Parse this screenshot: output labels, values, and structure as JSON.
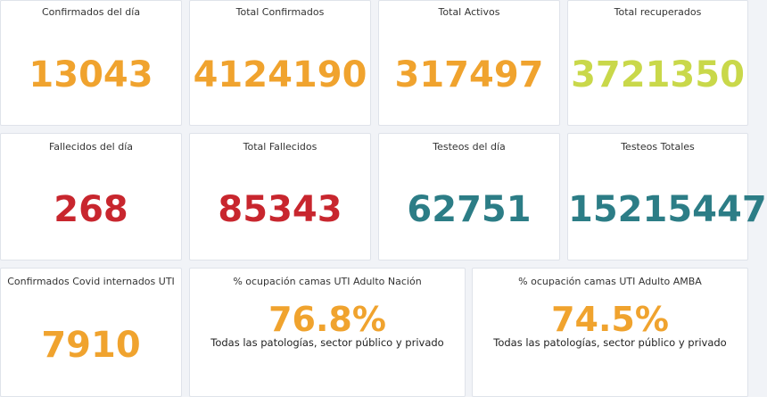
{
  "colors": {
    "orange": "#f0a32e",
    "lime": "#c9d84a",
    "red": "#c8262e",
    "teal": "#2c7d86"
  },
  "row1": [
    {
      "label": "Confirmados del día",
      "value": "13043",
      "color": "orange"
    },
    {
      "label": "Total Confirmados",
      "value": "4124190",
      "color": "orange"
    },
    {
      "label": "Total Activos",
      "value": "317497",
      "color": "orange"
    },
    {
      "label": "Total recuperados",
      "value": "3721350",
      "color": "lime"
    }
  ],
  "row2": [
    {
      "label": "Fallecidos del día",
      "value": "268",
      "color": "red"
    },
    {
      "label": "Total Fallecidos",
      "value": "85343",
      "color": "red"
    },
    {
      "label": "Testeos del día",
      "value": "62751",
      "color": "teal"
    },
    {
      "label": "Testeos Totales",
      "value": "15215447",
      "color": "teal"
    }
  ],
  "row3": {
    "uti": {
      "label": "Confirmados Covid internados UTI",
      "value": "7910"
    },
    "nacion": {
      "label": "% ocupación camas UTI Adulto Nación",
      "value": "76.8%",
      "sub": "Todas las patologías, sector público y privado"
    },
    "amba": {
      "label": "% ocupación camas UTI Adulto AMBA",
      "value": "74.5%",
      "sub": "Todas las patologías, sector público y privado"
    }
  }
}
